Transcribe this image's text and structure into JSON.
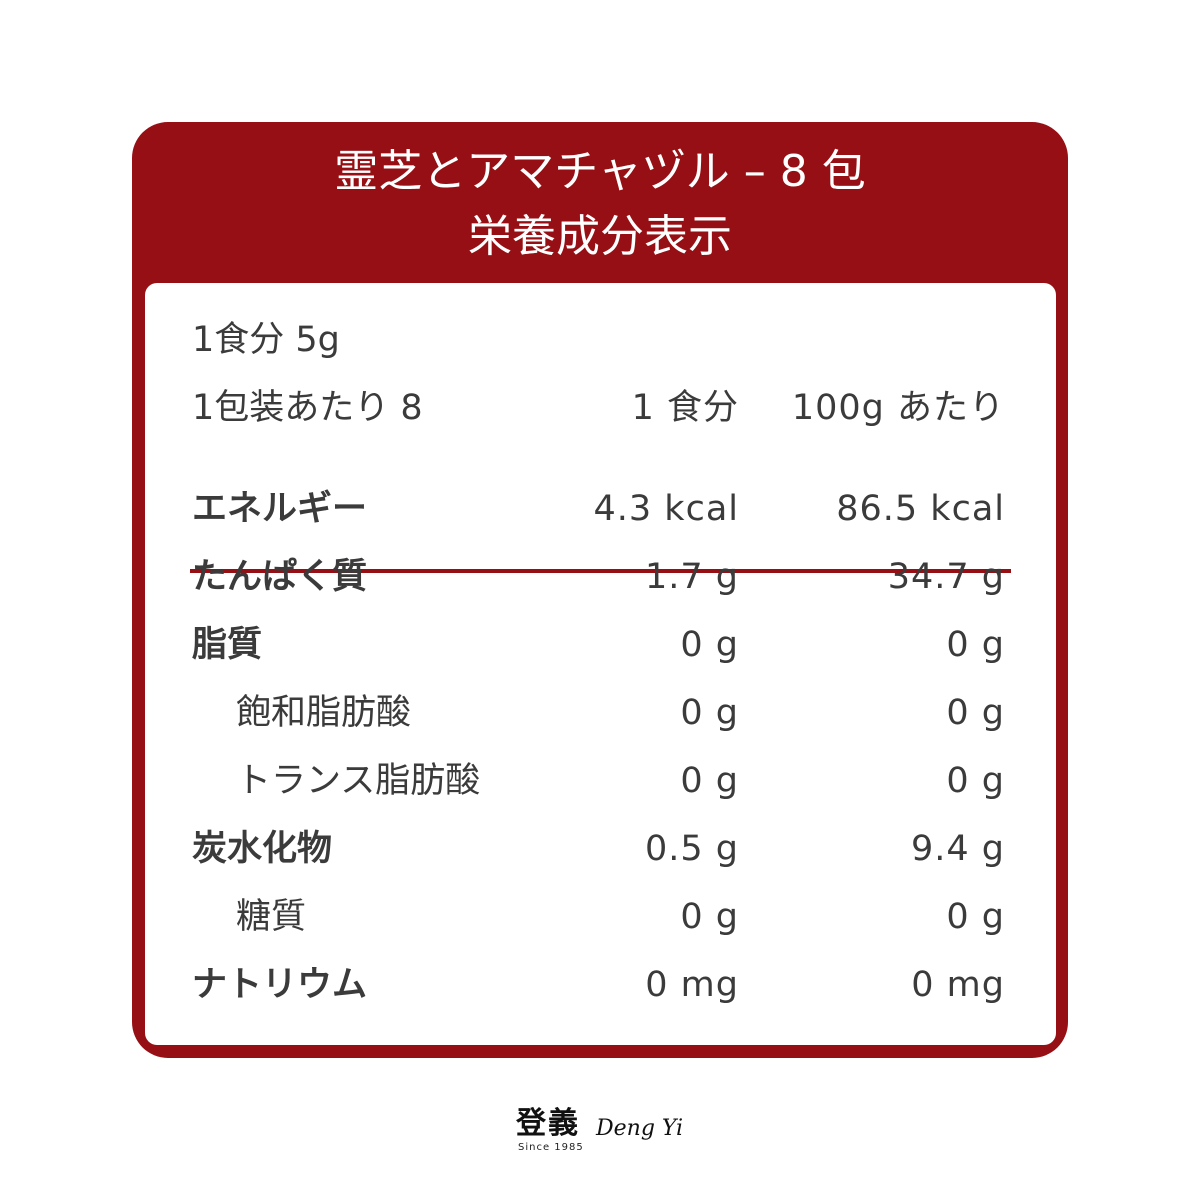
{
  "title": {
    "line1": "霊芝とアマチャヅル – 8 包",
    "line2": "栄養成分表示"
  },
  "serving": {
    "size": "1食分 5g",
    "per_package": "1包装あたり 8",
    "col1_header": "1 食分",
    "col2_header": "100g あたり"
  },
  "rows": [
    {
      "label": "エネルギー",
      "per_serving": "4.3 kcal",
      "per_100g": "86.5 kcal",
      "bold": true
    },
    {
      "label": "たんぱく質",
      "per_serving": "1.7 g",
      "per_100g": "34.7 g",
      "bold": true
    },
    {
      "label": "脂質",
      "per_serving": "0 g",
      "per_100g": "0 g",
      "bold": true
    },
    {
      "label": "飽和脂肪酸",
      "per_serving": "0 g",
      "per_100g": "0 g",
      "bold": false
    },
    {
      "label": "トランス脂肪酸",
      "per_serving": "0 g",
      "per_100g": "0 g",
      "bold": false
    },
    {
      "label": "炭水化物",
      "per_serving": "0.5 g",
      "per_100g": "9.4 g",
      "bold": true
    },
    {
      "label": "糖質",
      "per_serving": "0 g",
      "per_100g": "0 g",
      "bold": false
    },
    {
      "label": "ナトリウム",
      "per_serving": "0 mg",
      "per_100g": "0 mg",
      "bold": true
    }
  ],
  "logo": {
    "chinese": "登義",
    "english": "Deng Yi",
    "since": "Since 1985"
  },
  "colors": {
    "brand_red": "#960f14",
    "text": "#3b3b3b"
  }
}
